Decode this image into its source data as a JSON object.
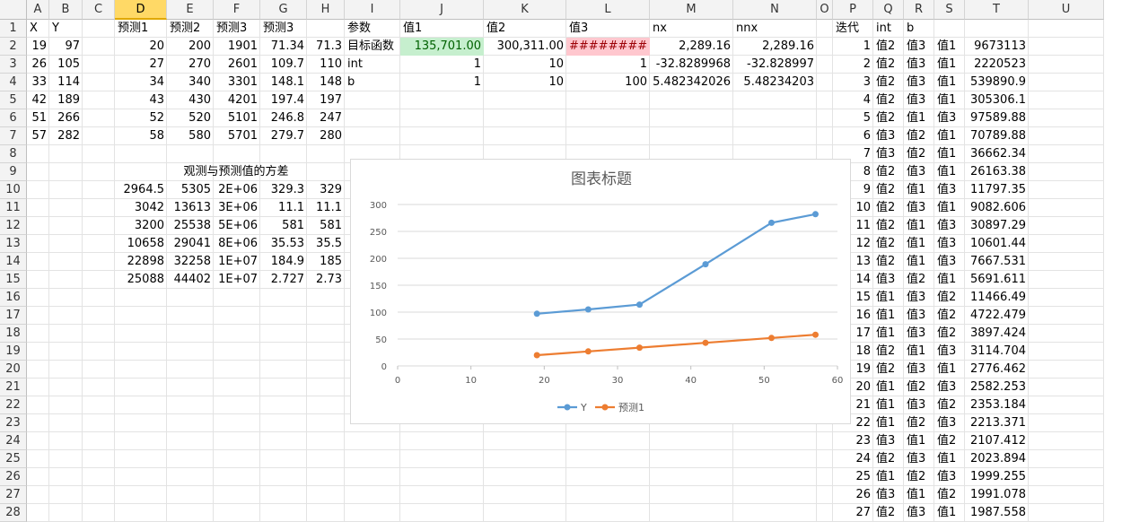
{
  "columns": [
    "A",
    "B",
    "C",
    "D",
    "E",
    "F",
    "G",
    "H",
    "I",
    "J",
    "K",
    "L",
    "M",
    "N",
    "O",
    "P",
    "Q",
    "R",
    "S",
    "T",
    "U"
  ],
  "selected_column": "D",
  "rows": [
    "1",
    "2",
    "3",
    "4",
    "5",
    "6",
    "7",
    "8",
    "9",
    "10",
    "11",
    "12",
    "13",
    "14",
    "15",
    "16",
    "17",
    "18",
    "19",
    "20",
    "21",
    "22",
    "23",
    "24",
    "25",
    "26",
    "27",
    "28"
  ],
  "cells": {
    "A1": "X",
    "B1": "Y",
    "D1": "预测1",
    "E1": "预测2",
    "F1": "预测3",
    "G1": "预测3",
    "A2": "19",
    "B2": "97",
    "D2": "20",
    "E2": "200",
    "F2": "1901",
    "G2": "71.34",
    "H2": "71.3",
    "A3": "26",
    "B3": "105",
    "D3": "27",
    "E3": "270",
    "F3": "2601",
    "G3": "109.7",
    "H3": "110",
    "A4": "33",
    "B4": "114",
    "D4": "34",
    "E4": "340",
    "F4": "3301",
    "G4": "148.1",
    "H4": "148",
    "A5": "42",
    "B5": "189",
    "D5": "43",
    "E5": "430",
    "F5": "4201",
    "G5": "197.4",
    "H5": "197",
    "A6": "51",
    "B6": "266",
    "D6": "52",
    "E6": "520",
    "F6": "5101",
    "G6": "246.8",
    "H6": "247",
    "A7": "57",
    "B7": "282",
    "D7": "58",
    "E7": "580",
    "F7": "5701",
    "G7": "279.7",
    "H7": "280",
    "E9": "观测与预测值的方差",
    "D10": "2964.5",
    "E10": "5305",
    "F10": "2E+06",
    "G10": "329.3",
    "H10": "329",
    "D11": "3042",
    "E11": "13613",
    "F11": "3E+06",
    "G11": "11.1",
    "H11": "11.1",
    "D12": "3200",
    "E12": "25538",
    "F12": "5E+06",
    "G12": "581",
    "H12": "581",
    "D13": "10658",
    "E13": "29041",
    "F13": "8E+06",
    "G13": "35.53",
    "H13": "35.5",
    "D14": "22898",
    "E14": "32258",
    "F14": "1E+07",
    "G14": "184.9",
    "H14": "185",
    "D15": "25088",
    "E15": "44402",
    "F15": "1E+07",
    "G15": "2.727",
    "H15": "2.73",
    "I1": "参数",
    "J1": "值1",
    "K1": "值2",
    "L1": "值3",
    "M1": "nx",
    "N1": "nnx",
    "I2": "目标函数",
    "J2": "135,701.00",
    "K2": "300,311.00",
    "L2": "########",
    "M2": "2,289.16",
    "N2": "2,289.16",
    "I3": "int",
    "J3": "1",
    "K3": "10",
    "L3": "1",
    "M3": "-32.8289968",
    "N3": "-32.828997",
    "I4": "b",
    "J4": "1",
    "K4": "10",
    "L4": "100",
    "M4": "5.482342026",
    "N4": "5.48234203",
    "P1": "迭代",
    "Q1": "int",
    "R1": "b"
  },
  "iterations": [
    [
      "1",
      "值2",
      "值3",
      "值1",
      "9673113"
    ],
    [
      "2",
      "值2",
      "值3",
      "值1",
      "2220523"
    ],
    [
      "3",
      "值2",
      "值3",
      "值1",
      "539890.9"
    ],
    [
      "4",
      "值2",
      "值3",
      "值1",
      "305306.1"
    ],
    [
      "5",
      "值2",
      "值1",
      "值3",
      "97589.88"
    ],
    [
      "6",
      "值3",
      "值2",
      "值1",
      "70789.88"
    ],
    [
      "7",
      "值3",
      "值2",
      "值1",
      "36662.34"
    ],
    [
      "8",
      "值2",
      "值3",
      "值1",
      "26163.38"
    ],
    [
      "9",
      "值2",
      "值1",
      "值3",
      "11797.35"
    ],
    [
      "10",
      "值2",
      "值3",
      "值1",
      "9082.606"
    ],
    [
      "11",
      "值2",
      "值1",
      "值3",
      "30897.29"
    ],
    [
      "12",
      "值2",
      "值1",
      "值3",
      "10601.44"
    ],
    [
      "13",
      "值2",
      "值1",
      "值3",
      "7667.531"
    ],
    [
      "14",
      "值3",
      "值2",
      "值1",
      "5691.611"
    ],
    [
      "15",
      "值1",
      "值3",
      "值2",
      "11466.49"
    ],
    [
      "16",
      "值1",
      "值3",
      "值2",
      "4722.479"
    ],
    [
      "17",
      "值1",
      "值3",
      "值2",
      "3897.424"
    ],
    [
      "18",
      "值2",
      "值1",
      "值3",
      "3114.704"
    ],
    [
      "19",
      "值2",
      "值3",
      "值1",
      "2776.462"
    ],
    [
      "20",
      "值1",
      "值2",
      "值3",
      "2582.253"
    ],
    [
      "21",
      "值1",
      "值3",
      "值2",
      "2353.184"
    ],
    [
      "22",
      "值1",
      "值2",
      "值3",
      "2213.371"
    ],
    [
      "23",
      "值3",
      "值1",
      "值2",
      "2107.412"
    ],
    [
      "24",
      "值2",
      "值3",
      "值1",
      "2023.894"
    ],
    [
      "25",
      "值1",
      "值2",
      "值3",
      "1999.255"
    ],
    [
      "26",
      "值3",
      "值1",
      "值2",
      "1991.078"
    ],
    [
      "27",
      "值2",
      "值3",
      "值1",
      "1987.558"
    ]
  ],
  "colors": {
    "green_fill": "#c6efce",
    "red_fill": "#ffc7ce",
    "selected_header": "#ffd966",
    "series_y": "#5b9bd5",
    "series_pred": "#ed7d31"
  },
  "chart_data": {
    "type": "line",
    "title": "图表标题",
    "xlabel": "",
    "ylabel": "",
    "xlim": [
      0,
      60
    ],
    "ylim": [
      0,
      300
    ],
    "xticks": [
      "0",
      "10",
      "20",
      "30",
      "40",
      "50",
      "60"
    ],
    "yticks": [
      "0",
      "50",
      "100",
      "150",
      "200",
      "250",
      "300"
    ],
    "grid": true,
    "legend": "bottom",
    "series": [
      {
        "name": "Y",
        "color": "#5b9bd5",
        "x": [
          19,
          26,
          33,
          42,
          51,
          57
        ],
        "values": [
          97,
          105,
          114,
          189,
          266,
          282
        ]
      },
      {
        "name": "预测1",
        "color": "#ed7d31",
        "x": [
          19,
          26,
          33,
          42,
          51,
          57
        ],
        "values": [
          20,
          27,
          34,
          43,
          52,
          58
        ]
      }
    ]
  }
}
